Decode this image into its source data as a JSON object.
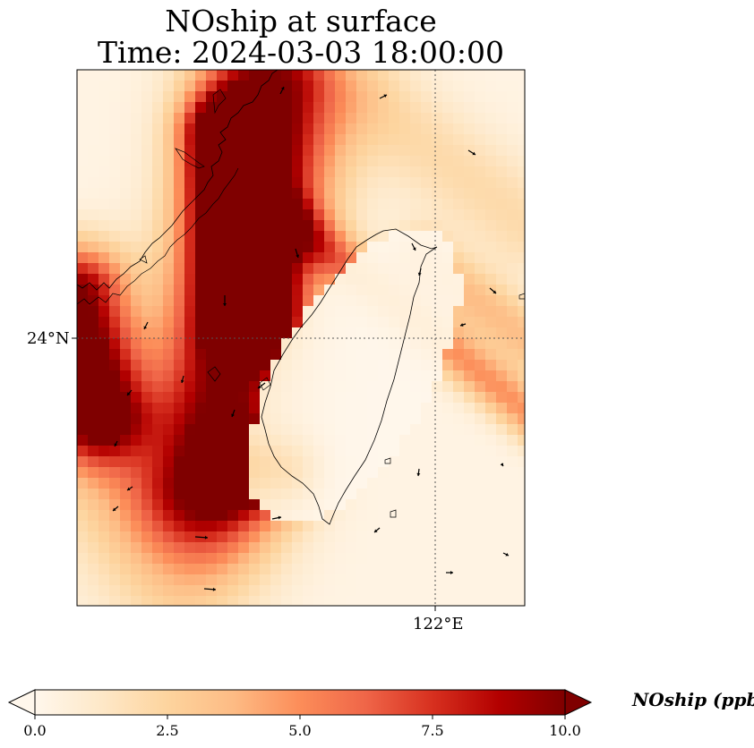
{
  "title_line1": "NOship at surface",
  "title_line2": "Time: 2024-03-03 18:00:00",
  "map": {
    "lat_label": "24°N",
    "lon_label": "122°E",
    "variable": "NOship",
    "colormap": [
      "#fff7ec",
      "#fee8c8",
      "#fdd49e",
      "#fdbb84",
      "#fc8d59",
      "#ef6548",
      "#d7301f",
      "#b30000",
      "#7f0000"
    ],
    "coastline_color": "#000000",
    "gridline_style": "dotted"
  },
  "colorbar": {
    "label": "NOship (ppbv)",
    "min": 0.0,
    "max": 10.0,
    "ticks": [
      "0.0",
      "2.5",
      "5.0",
      "7.5",
      "10.0"
    ],
    "extend": "both"
  }
}
